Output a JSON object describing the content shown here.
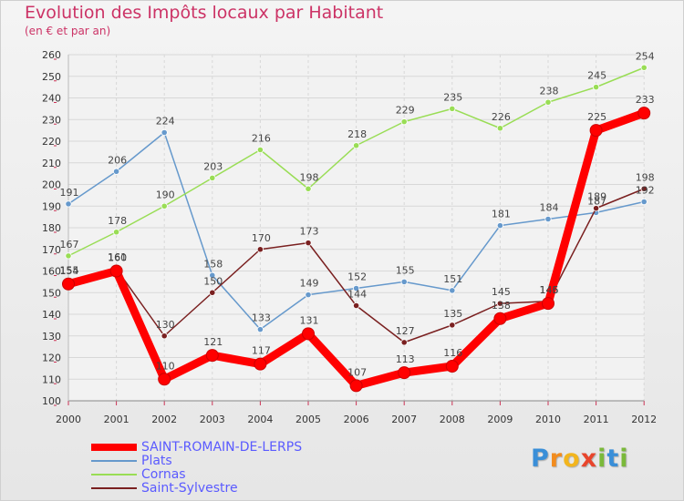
{
  "chart_data": {
    "type": "line",
    "title": "Evolution des Impôts locaux par Habitant",
    "subtitle": "(en € et par an)",
    "xlabel": "",
    "ylabel": "",
    "ylim": [
      100,
      260
    ],
    "yticks": [
      "100",
      "110",
      "120",
      "130",
      "140",
      "150",
      "160",
      "170",
      "180",
      "190",
      "200",
      "210",
      "220",
      "230",
      "240",
      "250",
      "260"
    ],
    "categories": [
      "2000",
      "2001",
      "2002",
      "2003",
      "2004",
      "2005",
      "2006",
      "2007",
      "2008",
      "2009",
      "2010",
      "2011",
      "2012"
    ],
    "grid": true,
    "legend_position": "bottom-left",
    "series": [
      {
        "name": "SAINT-ROMAIN-DE-LERPS",
        "color": "#ff0000",
        "values": [
          154,
          160,
          110,
          121,
          117,
          131,
          107,
          113,
          116,
          138,
          145,
          225,
          233
        ],
        "labels": [
          "154",
          "160",
          "110",
          "121",
          "117",
          "131",
          "107",
          "113",
          "116",
          "138",
          "145",
          "225",
          "233"
        ]
      },
      {
        "name": "Plats",
        "color": "#6699cc",
        "values": [
          191,
          206,
          224,
          158,
          133,
          149,
          152,
          155,
          151,
          181,
          184,
          187,
          192
        ],
        "labels": [
          "191",
          "206",
          "224",
          "158",
          "133",
          "149",
          "152",
          "155",
          "151",
          "181",
          "184",
          "187",
          "192"
        ]
      },
      {
        "name": "Cornas",
        "color": "#99dd55",
        "values": [
          167,
          178,
          190,
          203,
          216,
          198,
          218,
          229,
          235,
          226,
          238,
          245,
          254
        ],
        "labels": [
          "167",
          "178",
          "190",
          "203",
          "216",
          "198",
          "218",
          "229",
          "235",
          "226",
          "238",
          "245",
          "254"
        ]
      },
      {
        "name": "Saint-Sylvestre",
        "color": "#7a2020",
        "values": [
          155,
          161,
          130,
          150,
          170,
          173,
          144,
          127,
          135,
          145,
          146,
          189,
          198
        ],
        "labels": [
          "155",
          "161",
          "130",
          "150",
          "170",
          "173",
          "144",
          "127",
          "135",
          "145",
          "146",
          "189",
          "198"
        ]
      }
    ]
  },
  "logo": {
    "letters": [
      "P",
      "r",
      "o",
      "x",
      "i",
      "t",
      "i"
    ],
    "colors": [
      "#3a8fd8",
      "#f28c1e",
      "#f2b51e",
      "#e8452c",
      "#7ab93a",
      "#3a8fd8",
      "#7ab93a"
    ]
  }
}
